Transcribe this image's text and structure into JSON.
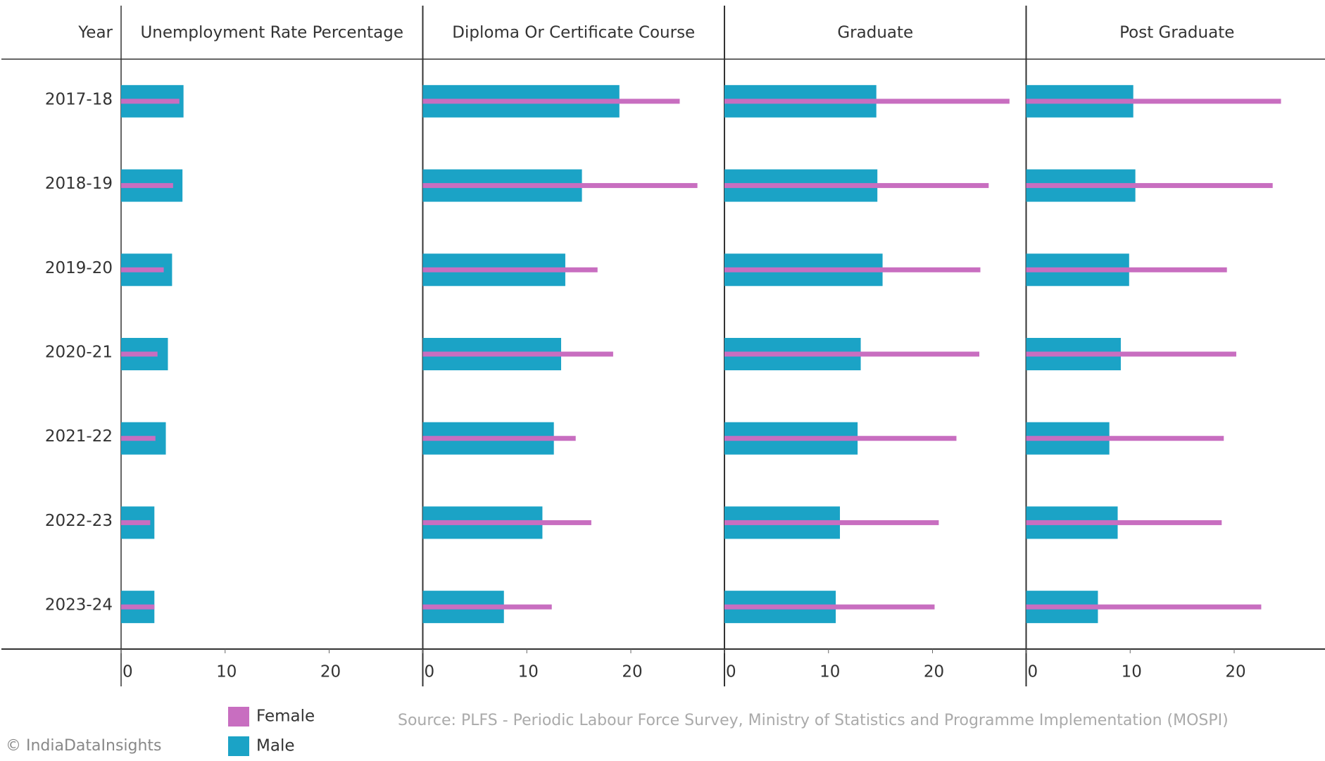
{
  "row_header": "Year",
  "source": "Source: PLFS - Periodic Labour Force Survey, Ministry of Statistics and Programme Implementation (MOSPI)",
  "credit": "© IndiaDataInsights",
  "chart_data": [
    {
      "type": "bar",
      "title": "Unemployment Rate Percentage",
      "categories": [
        "2017-18",
        "2018-19",
        "2019-20",
        "2020-21",
        "2021-22",
        "2022-23",
        "2023-24"
      ],
      "xlim": [
        0,
        29
      ],
      "xticks": [
        0,
        10,
        20
      ],
      "series": [
        {
          "name": "Female",
          "color": "#c86ec0",
          "values": [
            5.6,
            5.0,
            4.1,
            3.5,
            3.3,
            2.8,
            3.2
          ]
        },
        {
          "name": "Male",
          "color": "#1ba3c6",
          "values": [
            6.0,
            5.9,
            4.9,
            4.5,
            4.3,
            3.2,
            3.2
          ]
        }
      ]
    },
    {
      "type": "bar",
      "title": "Diploma Or Certificate Course",
      "xlim": [
        0,
        29
      ],
      "xticks": [
        0,
        10,
        20
      ],
      "series": [
        {
          "name": "Female",
          "color": "#c86ec0",
          "values": [
            24.7,
            26.4,
            16.8,
            18.3,
            14.7,
            16.2,
            12.4
          ]
        },
        {
          "name": "Male",
          "color": "#1ba3c6",
          "values": [
            18.9,
            15.3,
            13.7,
            13.3,
            12.6,
            11.5,
            7.8
          ]
        }
      ]
    },
    {
      "type": "bar",
      "title": "Graduate",
      "xlim": [
        0,
        29
      ],
      "xticks": [
        0,
        10,
        20
      ],
      "series": [
        {
          "name": "Female",
          "color": "#c86ec0",
          "values": [
            27.4,
            25.4,
            24.6,
            24.5,
            22.3,
            20.6,
            20.2
          ]
        },
        {
          "name": "Male",
          "color": "#1ba3c6",
          "values": [
            14.6,
            14.7,
            15.2,
            13.1,
            12.8,
            11.1,
            10.7
          ]
        }
      ]
    },
    {
      "type": "bar",
      "title": "Post Graduate",
      "xlim": [
        0,
        29
      ],
      "xticks": [
        0,
        10,
        20
      ],
      "series": [
        {
          "name": "Female",
          "color": "#c86ec0",
          "values": [
            24.5,
            23.7,
            19.3,
            20.2,
            19.0,
            18.8,
            22.6
          ]
        },
        {
          "name": "Male",
          "color": "#1ba3c6",
          "values": [
            10.3,
            10.5,
            9.9,
            9.1,
            8.0,
            8.8,
            6.9
          ]
        }
      ]
    }
  ]
}
